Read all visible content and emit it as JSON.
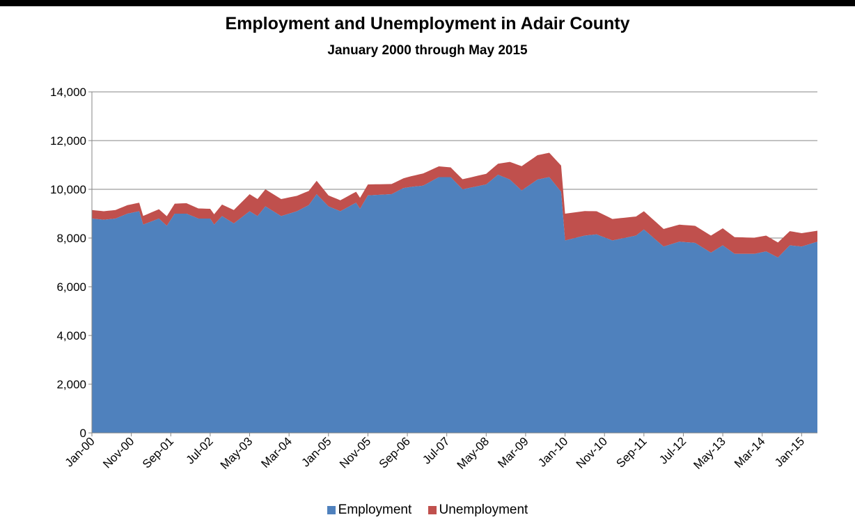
{
  "title": "Employment and Unemployment in Adair County",
  "subtitle": "January 2000 through May 2015",
  "chart_data": {
    "type": "area",
    "stacked": true,
    "title": "Employment and Unemployment in Adair County",
    "subtitle": "January 2000 through May 2015",
    "xlabel": "",
    "ylabel": "",
    "ylim": [
      0,
      14000
    ],
    "y_ticks": [
      0,
      2000,
      4000,
      6000,
      8000,
      10000,
      12000,
      14000
    ],
    "y_tick_labels": [
      "0",
      "2,000",
      "4,000",
      "6,000",
      "8,000",
      "10,000",
      "12,000",
      "14,000"
    ],
    "x_range": [
      "Jan-00",
      "May-15"
    ],
    "x_tick_labels": [
      "Jan-00",
      "Nov-00",
      "Sep-01",
      "Jul-02",
      "May-03",
      "Mar-04",
      "Jan-05",
      "Nov-05",
      "Sep-06",
      "Jul-07",
      "May-08",
      "Mar-09",
      "Jan-10",
      "Nov-10",
      "Sep-11",
      "Jul-12",
      "May-13",
      "Mar-14",
      "Jan-15"
    ],
    "grid": "horizontal",
    "legend_position": "bottom",
    "x_dates_key": "YYYY-MM",
    "series": [
      {
        "name": "Employment",
        "color": "#4f81bd",
        "values_by_date": [
          [
            "2000-01",
            8800
          ],
          [
            "2000-04",
            8750
          ],
          [
            "2000-07",
            8800
          ],
          [
            "2000-10",
            9000
          ],
          [
            "2001-01",
            9100
          ],
          [
            "2001-02",
            8550
          ],
          [
            "2001-06",
            8800
          ],
          [
            "2001-08",
            8500
          ],
          [
            "2001-10",
            9000
          ],
          [
            "2002-01",
            9000
          ],
          [
            "2002-04",
            8800
          ],
          [
            "2002-07",
            8800
          ],
          [
            "2002-08",
            8550
          ],
          [
            "2002-10",
            8900
          ],
          [
            "2003-01",
            8600
          ],
          [
            "2003-05",
            9100
          ],
          [
            "2003-07",
            8900
          ],
          [
            "2003-09",
            9300
          ],
          [
            "2004-01",
            8900
          ],
          [
            "2004-05",
            9100
          ],
          [
            "2004-08",
            9350
          ],
          [
            "2004-10",
            9800
          ],
          [
            "2005-01",
            9300
          ],
          [
            "2005-04",
            9100
          ],
          [
            "2005-08",
            9450
          ],
          [
            "2005-09",
            9200
          ],
          [
            "2005-11",
            9750
          ],
          [
            "2006-05",
            9800
          ],
          [
            "2006-08",
            10050
          ],
          [
            "2006-10",
            10100
          ],
          [
            "2007-01",
            10150
          ],
          [
            "2007-05",
            10500
          ],
          [
            "2007-08",
            10500
          ],
          [
            "2007-11",
            10000
          ],
          [
            "2008-05",
            10200
          ],
          [
            "2008-08",
            10600
          ],
          [
            "2008-11",
            10400
          ],
          [
            "2009-02",
            9950
          ],
          [
            "2009-06",
            10400
          ],
          [
            "2009-09",
            10500
          ],
          [
            "2009-12",
            9900
          ],
          [
            "2010-01",
            7900
          ],
          [
            "2010-06",
            8100
          ],
          [
            "2010-09",
            8150
          ],
          [
            "2011-01",
            7900
          ],
          [
            "2011-07",
            8100
          ],
          [
            "2011-09",
            8350
          ],
          [
            "2012-02",
            7650
          ],
          [
            "2012-06",
            7850
          ],
          [
            "2012-10",
            7800
          ],
          [
            "2013-02",
            7400
          ],
          [
            "2013-05",
            7700
          ],
          [
            "2013-08",
            7350
          ],
          [
            "2014-01",
            7350
          ],
          [
            "2014-04",
            7450
          ],
          [
            "2014-07",
            7200
          ],
          [
            "2014-10",
            7700
          ],
          [
            "2015-01",
            7650
          ],
          [
            "2015-05",
            7850
          ]
        ]
      },
      {
        "name": "Unemployment",
        "color": "#c0504d",
        "values_by_date": [
          [
            "2000-01",
            350
          ],
          [
            "2001-01",
            350
          ],
          [
            "2002-01",
            430
          ],
          [
            "2002-07",
            400
          ],
          [
            "2003-01",
            550
          ],
          [
            "2003-05",
            700
          ],
          [
            "2004-01",
            700
          ],
          [
            "2004-10",
            550
          ],
          [
            "2005-01",
            450
          ],
          [
            "2005-11",
            450
          ],
          [
            "2006-08",
            400
          ],
          [
            "2007-01",
            500
          ],
          [
            "2007-08",
            400
          ],
          [
            "2008-08",
            450
          ],
          [
            "2009-02",
            1000
          ],
          [
            "2009-09",
            1000
          ],
          [
            "2010-01",
            1100
          ],
          [
            "2010-09",
            950
          ],
          [
            "2011-09",
            750
          ],
          [
            "2012-06",
            700
          ],
          [
            "2013-05",
            700
          ],
          [
            "2014-04",
            650
          ],
          [
            "2015-01",
            550
          ],
          [
            "2015-05",
            450
          ]
        ]
      }
    ]
  }
}
